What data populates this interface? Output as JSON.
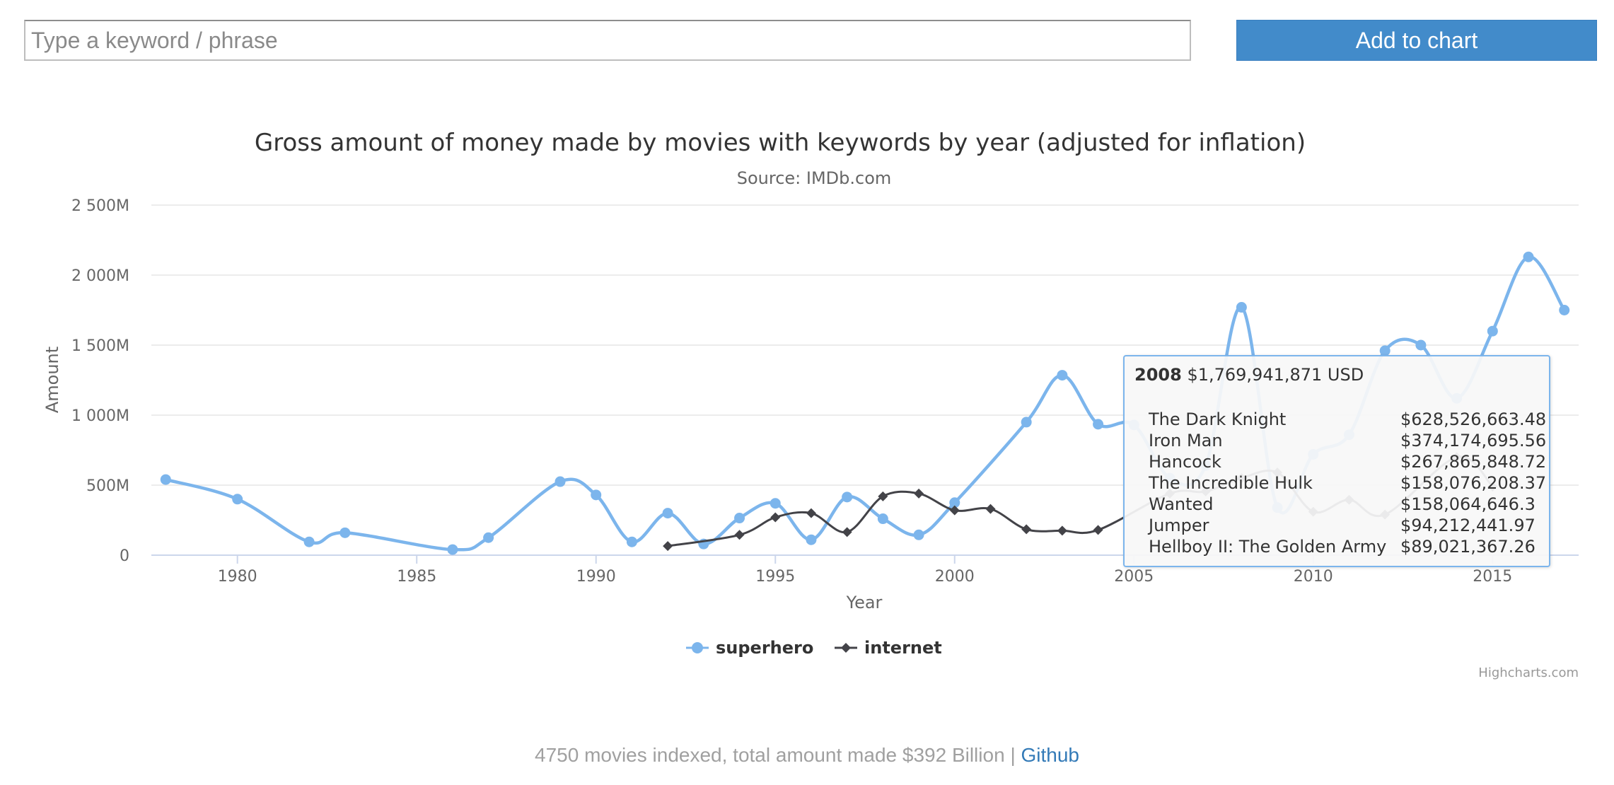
{
  "search": {
    "placeholder": "Type a keyword / phrase",
    "button_label": "Add to chart"
  },
  "chart": {
    "title": "Gross amount of money made by movies with keywords by year (adjusted for inflation)",
    "subtitle": "Source: IMDb.com",
    "credits": "Highcharts.com"
  },
  "chart_data": {
    "type": "line",
    "title": "Gross amount of money made by movies with keywords by year (adjusted for inflation)",
    "subtitle": "Source: IMDb.com",
    "xlabel": "Year",
    "ylabel": "Amount",
    "xlim": [
      1977.6,
      2017.4
    ],
    "ylim": [
      0,
      2500
    ],
    "y_unit": "M",
    "x_ticks": [
      1980,
      1985,
      1990,
      1995,
      2000,
      2005,
      2010,
      2015
    ],
    "y_ticks": [
      {
        "value": 0,
        "label": "0"
      },
      {
        "value": 500,
        "label": "500M"
      },
      {
        "value": 1000,
        "label": "1 000M"
      },
      {
        "value": 1500,
        "label": "1 500M"
      },
      {
        "value": 2000,
        "label": "2 000M"
      },
      {
        "value": 2500,
        "label": "2 500M"
      }
    ],
    "grid": true,
    "legend_position": "bottom-center",
    "series": [
      {
        "name": "superhero",
        "color": "#7cb5ec",
        "marker": "circle",
        "points": [
          [
            1978,
            540
          ],
          [
            1980,
            400
          ],
          [
            1982,
            95
          ],
          [
            1983,
            160
          ],
          [
            1986,
            40
          ],
          [
            1987,
            125
          ],
          [
            1989,
            525
          ],
          [
            1990,
            430
          ],
          [
            1991,
            95
          ],
          [
            1992,
            300
          ],
          [
            1993,
            80
          ],
          [
            1994,
            265
          ],
          [
            1995,
            370
          ],
          [
            1996,
            110
          ],
          [
            1997,
            415
          ],
          [
            1998,
            260
          ],
          [
            1999,
            145
          ],
          [
            2000,
            375
          ],
          [
            2002,
            950
          ],
          [
            2003,
            1285
          ],
          [
            2004,
            935
          ],
          [
            2005,
            930
          ],
          [
            2006,
            550
          ],
          [
            2007,
            640
          ],
          [
            2008,
            1770
          ],
          [
            2009,
            340
          ],
          [
            2010,
            720
          ],
          [
            2011,
            860
          ],
          [
            2012,
            1460
          ],
          [
            2013,
            1500
          ],
          [
            2014,
            1120
          ],
          [
            2015,
            1600
          ],
          [
            2016,
            2130
          ],
          [
            2017,
            1750
          ]
        ]
      },
      {
        "name": "internet",
        "color": "#434348",
        "marker": "diamond",
        "points": [
          [
            1992,
            65
          ],
          [
            1994,
            145
          ],
          [
            1995,
            270
          ],
          [
            1996,
            300
          ],
          [
            1997,
            165
          ],
          [
            1998,
            420
          ],
          [
            1999,
            440
          ],
          [
            2000,
            320
          ],
          [
            2001,
            330
          ],
          [
            2002,
            185
          ],
          [
            2003,
            175
          ],
          [
            2004,
            180
          ],
          [
            2006,
            440
          ],
          [
            2007,
            455
          ],
          [
            2008,
            550
          ],
          [
            2009,
            590
          ],
          [
            2010,
            310
          ],
          [
            2011,
            395
          ],
          [
            2012,
            290
          ],
          [
            2014,
            700
          ],
          [
            2015,
            490
          ]
        ]
      }
    ]
  },
  "tooltip": {
    "year": "2008",
    "total": "$1,769,941,871 USD",
    "movies": [
      {
        "name": "The Dark Knight",
        "value": "$628,526,663.48"
      },
      {
        "name": "Iron Man",
        "value": "$374,174,695.56"
      },
      {
        "name": "Hancock",
        "value": "$267,865,848.72"
      },
      {
        "name": "The Incredible Hulk",
        "value": "$158,076,208.37"
      },
      {
        "name": "Wanted",
        "value": "$158,064,646.3"
      },
      {
        "name": "Jumper",
        "value": "$94,212,441.97"
      },
      {
        "name": "Hellboy II: The Golden Army",
        "value": "$89,021,367.26"
      }
    ]
  },
  "footer": {
    "stats": "4750 movies indexed, total amount made $392 Billion",
    "separator": "|",
    "github_label": "Github"
  }
}
